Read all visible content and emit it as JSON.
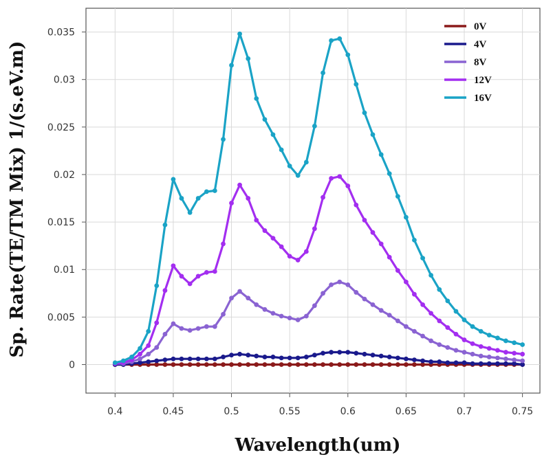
{
  "chart_data": {
    "type": "line",
    "title": "",
    "xlabel": "Wavelength(um)",
    "ylabel": "Sp. Rate(TE/TM Mix) 1/(s.eV.m)",
    "xlim": [
      0.375,
      0.765
    ],
    "ylim": [
      -0.003,
      0.0375
    ],
    "xticks": [
      0.4,
      0.45,
      0.5,
      0.55,
      0.6,
      0.65,
      0.7,
      0.75
    ],
    "xtick_labels": [
      "0.4",
      "0.45",
      "0.5",
      "0.55",
      "0.6",
      "0.65",
      "0.7",
      "0.75"
    ],
    "yticks": [
      0,
      0.005,
      0.01,
      0.015,
      0.02,
      0.025,
      0.03,
      0.035
    ],
    "ytick_labels": [
      "0",
      "0.005",
      "0.01",
      "0.015",
      "0.02",
      "0.025",
      "0.03",
      "0.035"
    ],
    "grid": true,
    "legend_position": "top-right",
    "x": [
      0.4,
      0.4071,
      0.4143,
      0.4214,
      0.4286,
      0.4357,
      0.4429,
      0.45,
      0.4571,
      0.4643,
      0.4714,
      0.4786,
      0.4857,
      0.4929,
      0.5,
      0.5071,
      0.5143,
      0.5214,
      0.5286,
      0.5357,
      0.5429,
      0.55,
      0.5571,
      0.5643,
      0.5714,
      0.5786,
      0.5857,
      0.5929,
      0.6,
      0.6071,
      0.6143,
      0.6214,
      0.6286,
      0.6357,
      0.6429,
      0.65,
      0.6571,
      0.6643,
      0.6714,
      0.6786,
      0.6857,
      0.6929,
      0.7,
      0.7071,
      0.7143,
      0.7214,
      0.7286,
      0.7357,
      0.7429,
      0.75
    ],
    "series": [
      {
        "name": "0V",
        "color": "#8b1a1a",
        "values": [
          0,
          0,
          0,
          0,
          0,
          0,
          0,
          0,
          0,
          0,
          0,
          0,
          0,
          0,
          0,
          0,
          0,
          0,
          0,
          0,
          0,
          0,
          0,
          0,
          0,
          0,
          0,
          0,
          0,
          0,
          0,
          0,
          0,
          0,
          0,
          0,
          0,
          0,
          0,
          0,
          0,
          0,
          0,
          0,
          0,
          0,
          0,
          0,
          0,
          0
        ]
      },
      {
        "name": "4V",
        "color": "#1a1a8c",
        "values": [
          0,
          0,
          0.0001,
          0.0002,
          0.0003,
          0.0004,
          0.0005,
          0.0006,
          0.0006,
          0.0006,
          0.0006,
          0.0006,
          0.0006,
          0.0008,
          0.001,
          0.0011,
          0.001,
          0.0009,
          0.0008,
          0.0008,
          0.0007,
          0.0007,
          0.0007,
          0.0008,
          0.001,
          0.0012,
          0.0013,
          0.0013,
          0.0013,
          0.0012,
          0.0011,
          0.001,
          0.0009,
          0.0008,
          0.0007,
          0.0006,
          0.0005,
          0.0004,
          0.0003,
          0.0003,
          0.0002,
          0.0002,
          0.0002,
          0.0001,
          0.0001,
          0.0001,
          0.0001,
          0.0001,
          0.0001,
          0
        ]
      },
      {
        "name": "8V",
        "color": "#8a63d2",
        "values": [
          0.0001,
          0.0001,
          0.0003,
          0.0006,
          0.0011,
          0.0018,
          0.0032,
          0.0043,
          0.0038,
          0.0036,
          0.0038,
          0.004,
          0.004,
          0.0053,
          0.007,
          0.0077,
          0.007,
          0.0063,
          0.0058,
          0.0054,
          0.0051,
          0.0049,
          0.0047,
          0.0051,
          0.0062,
          0.0075,
          0.0084,
          0.0087,
          0.0084,
          0.0076,
          0.0069,
          0.0063,
          0.0057,
          0.0052,
          0.0046,
          0.004,
          0.0035,
          0.003,
          0.0025,
          0.0021,
          0.0018,
          0.0015,
          0.0013,
          0.0011,
          0.0009,
          0.0008,
          0.0007,
          0.0006,
          0.0005,
          0.0004
        ]
      },
      {
        "name": "12V",
        "color": "#a32ef0",
        "values": [
          0.0001,
          0.0002,
          0.0005,
          0.0011,
          0.002,
          0.0044,
          0.0078,
          0.0104,
          0.0093,
          0.0085,
          0.0093,
          0.0097,
          0.0098,
          0.0127,
          0.017,
          0.0189,
          0.0175,
          0.0152,
          0.0141,
          0.0133,
          0.0124,
          0.0114,
          0.011,
          0.0119,
          0.0143,
          0.0176,
          0.0196,
          0.0198,
          0.0188,
          0.0168,
          0.0152,
          0.0139,
          0.0127,
          0.0113,
          0.0099,
          0.0087,
          0.0074,
          0.0063,
          0.0054,
          0.0046,
          0.0039,
          0.0032,
          0.0026,
          0.0022,
          0.0019,
          0.0017,
          0.0015,
          0.0013,
          0.0012,
          0.0011
        ]
      },
      {
        "name": "16V",
        "color": "#1aa3c6",
        "values": [
          0.0002,
          0.0004,
          0.0008,
          0.0017,
          0.0035,
          0.0083,
          0.0147,
          0.0195,
          0.0175,
          0.016,
          0.0175,
          0.0182,
          0.0183,
          0.0237,
          0.0315,
          0.0348,
          0.0322,
          0.028,
          0.0258,
          0.0242,
          0.0226,
          0.0209,
          0.0199,
          0.0213,
          0.0251,
          0.0307,
          0.0341,
          0.0343,
          0.0326,
          0.0295,
          0.0265,
          0.0242,
          0.0221,
          0.0201,
          0.0177,
          0.0155,
          0.0131,
          0.0112,
          0.0094,
          0.0079,
          0.0067,
          0.0056,
          0.0047,
          0.004,
          0.0035,
          0.0031,
          0.0028,
          0.0025,
          0.0023,
          0.0021
        ]
      }
    ]
  }
}
